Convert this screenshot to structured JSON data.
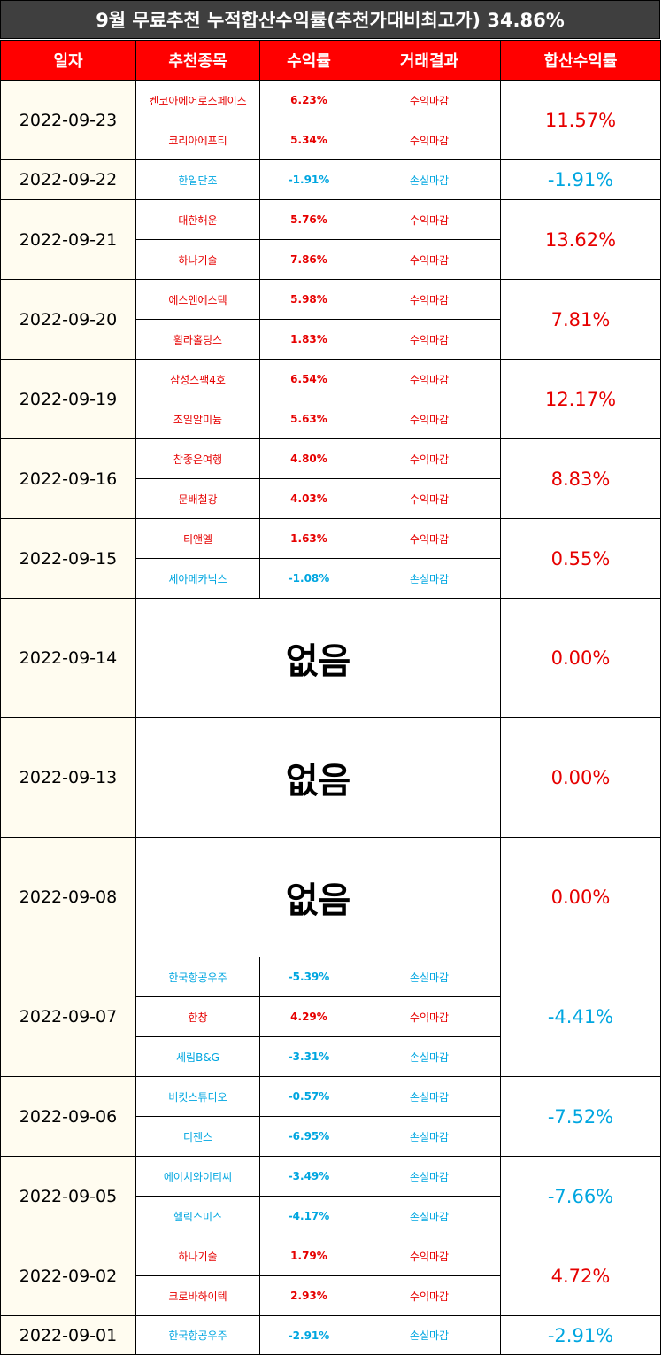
{
  "title": "9월 무료추천 누적합산수익률(추천가대비최고가) 34.86%",
  "headers": {
    "date": "일자",
    "name": "추천종목",
    "rate": "수익률",
    "result": "거래결과",
    "total": "합산수익률"
  },
  "colors": {
    "header_bg": "#ff0000",
    "title_bg": "#3f3f3f",
    "profit": "#e60000",
    "loss": "#00a6e0",
    "date_bg": "#fffcf0"
  },
  "groups": [
    {
      "date": "2022-09-23",
      "total": "11.57%",
      "total_sign": "red",
      "rows": [
        {
          "name": "켄코아에어로스페이스",
          "rate": "6.23%",
          "result": "수익마감",
          "sign": "red"
        },
        {
          "name": "코리아에프티",
          "rate": "5.34%",
          "result": "수익마감",
          "sign": "red"
        }
      ]
    },
    {
      "date": "2022-09-22",
      "total": "-1.91%",
      "total_sign": "blue",
      "rows": [
        {
          "name": "한일단조",
          "rate": "-1.91%",
          "result": "손실마감",
          "sign": "blue"
        }
      ]
    },
    {
      "date": "2022-09-21",
      "total": "13.62%",
      "total_sign": "red",
      "rows": [
        {
          "name": "대한해운",
          "rate": "5.76%",
          "result": "수익마감",
          "sign": "red"
        },
        {
          "name": "하나기술",
          "rate": "7.86%",
          "result": "수익마감",
          "sign": "red"
        }
      ]
    },
    {
      "date": "2022-09-20",
      "total": "7.81%",
      "total_sign": "red",
      "rows": [
        {
          "name": "에스앤에스텍",
          "rate": "5.98%",
          "result": "수익마감",
          "sign": "red"
        },
        {
          "name": "휠라홀딩스",
          "rate": "1.83%",
          "result": "수익마감",
          "sign": "red"
        }
      ]
    },
    {
      "date": "2022-09-19",
      "total": "12.17%",
      "total_sign": "red",
      "rows": [
        {
          "name": "삼성스팩4호",
          "rate": "6.54%",
          "result": "수익마감",
          "sign": "red"
        },
        {
          "name": "조일알미늄",
          "rate": "5.63%",
          "result": "수익마감",
          "sign": "red"
        }
      ]
    },
    {
      "date": "2022-09-16",
      "total": "8.83%",
      "total_sign": "red",
      "rows": [
        {
          "name": "참좋은여행",
          "rate": "4.80%",
          "result": "수익마감",
          "sign": "red"
        },
        {
          "name": "문배철강",
          "rate": "4.03%",
          "result": "수익마감",
          "sign": "red"
        }
      ]
    },
    {
      "date": "2022-09-15",
      "total": "0.55%",
      "total_sign": "red",
      "rows": [
        {
          "name": "티앤엘",
          "rate": "1.63%",
          "result": "수익마감",
          "sign": "red"
        },
        {
          "name": "세아메카닉스",
          "rate": "-1.08%",
          "result": "손실마감",
          "sign": "blue"
        }
      ]
    },
    {
      "date": "2022-09-14",
      "total": "0.00%",
      "total_sign": "red",
      "none": "없음"
    },
    {
      "date": "2022-09-13",
      "total": "0.00%",
      "total_sign": "red",
      "none": "없음"
    },
    {
      "date": "2022-09-08",
      "total": "0.00%",
      "total_sign": "red",
      "none": "없음"
    },
    {
      "date": "2022-09-07",
      "total": "-4.41%",
      "total_sign": "blue",
      "rows": [
        {
          "name": "한국항공우주",
          "rate": "-5.39%",
          "result": "손실마감",
          "sign": "blue"
        },
        {
          "name": "한창",
          "rate": "4.29%",
          "result": "수익마감",
          "sign": "red"
        },
        {
          "name": "세림B&G",
          "rate": "-3.31%",
          "result": "손실마감",
          "sign": "blue"
        }
      ]
    },
    {
      "date": "2022-09-06",
      "total": "-7.52%",
      "total_sign": "blue",
      "rows": [
        {
          "name": "버킷스튜디오",
          "rate": "-0.57%",
          "result": "손실마감",
          "sign": "blue"
        },
        {
          "name": "디젠스",
          "rate": "-6.95%",
          "result": "손실마감",
          "sign": "blue"
        }
      ]
    },
    {
      "date": "2022-09-05",
      "total": "-7.66%",
      "total_sign": "blue",
      "rows": [
        {
          "name": "에이치와이티씨",
          "rate": "-3.49%",
          "result": "손실마감",
          "sign": "blue"
        },
        {
          "name": "헬릭스미스",
          "rate": "-4.17%",
          "result": "손실마감",
          "sign": "blue"
        }
      ]
    },
    {
      "date": "2022-09-02",
      "total": "4.72%",
      "total_sign": "red",
      "rows": [
        {
          "name": "하나기술",
          "rate": "1.79%",
          "result": "수익마감",
          "sign": "red"
        },
        {
          "name": "크로바하이텍",
          "rate": "2.93%",
          "result": "수익마감",
          "sign": "red"
        }
      ]
    },
    {
      "date": "2022-09-01",
      "total": "-2.91%",
      "total_sign": "blue",
      "rows": [
        {
          "name": "한국항공우주",
          "rate": "-2.91%",
          "result": "손실마감",
          "sign": "blue"
        }
      ]
    }
  ]
}
